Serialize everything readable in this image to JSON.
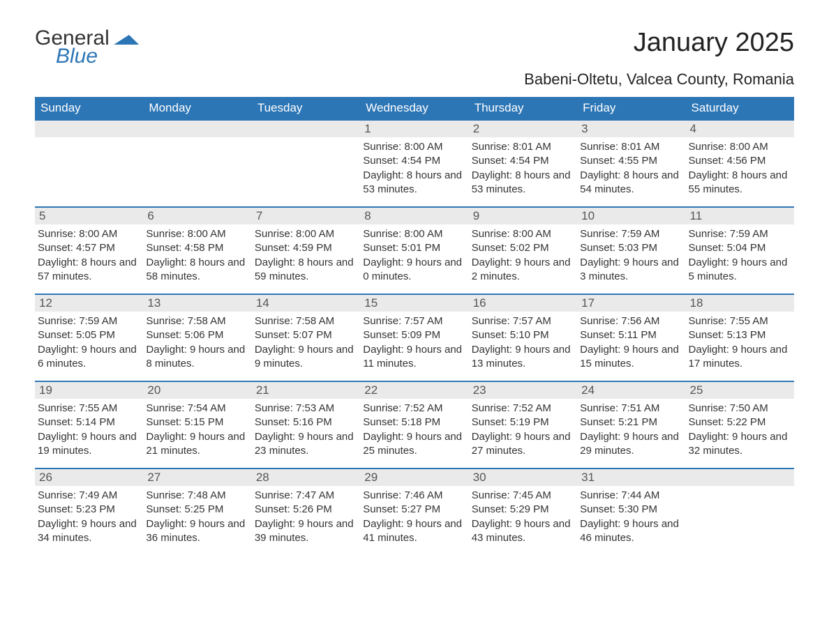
{
  "logo": {
    "word1": "General",
    "word2": "Blue"
  },
  "title": "January 2025",
  "location": "Babeni-Oltetu, Valcea County, Romania",
  "colors": {
    "header_bg": "#2d76b6",
    "header_text": "#ffffff",
    "daybar_bg": "#eaeaea",
    "daybar_text": "#555555",
    "body_text": "#333333",
    "accent_line": "#2d76b6",
    "page_bg": "#ffffff"
  },
  "typography": {
    "title_fontsize": 38,
    "location_fontsize": 22,
    "header_fontsize": 17,
    "daynum_fontsize": 17,
    "body_fontsize": 15
  },
  "layout": {
    "columns": 7,
    "leading_blanks": 3,
    "trailing_blanks": 1
  },
  "weekdays": [
    "Sunday",
    "Monday",
    "Tuesday",
    "Wednesday",
    "Thursday",
    "Friday",
    "Saturday"
  ],
  "days": [
    {
      "n": "1",
      "sunrise": "Sunrise: 8:00 AM",
      "sunset": "Sunset: 4:54 PM",
      "daylight": "Daylight: 8 hours and 53 minutes."
    },
    {
      "n": "2",
      "sunrise": "Sunrise: 8:01 AM",
      "sunset": "Sunset: 4:54 PM",
      "daylight": "Daylight: 8 hours and 53 minutes."
    },
    {
      "n": "3",
      "sunrise": "Sunrise: 8:01 AM",
      "sunset": "Sunset: 4:55 PM",
      "daylight": "Daylight: 8 hours and 54 minutes."
    },
    {
      "n": "4",
      "sunrise": "Sunrise: 8:00 AM",
      "sunset": "Sunset: 4:56 PM",
      "daylight": "Daylight: 8 hours and 55 minutes."
    },
    {
      "n": "5",
      "sunrise": "Sunrise: 8:00 AM",
      "sunset": "Sunset: 4:57 PM",
      "daylight": "Daylight: 8 hours and 57 minutes."
    },
    {
      "n": "6",
      "sunrise": "Sunrise: 8:00 AM",
      "sunset": "Sunset: 4:58 PM",
      "daylight": "Daylight: 8 hours and 58 minutes."
    },
    {
      "n": "7",
      "sunrise": "Sunrise: 8:00 AM",
      "sunset": "Sunset: 4:59 PM",
      "daylight": "Daylight: 8 hours and 59 minutes."
    },
    {
      "n": "8",
      "sunrise": "Sunrise: 8:00 AM",
      "sunset": "Sunset: 5:01 PM",
      "daylight": "Daylight: 9 hours and 0 minutes."
    },
    {
      "n": "9",
      "sunrise": "Sunrise: 8:00 AM",
      "sunset": "Sunset: 5:02 PM",
      "daylight": "Daylight: 9 hours and 2 minutes."
    },
    {
      "n": "10",
      "sunrise": "Sunrise: 7:59 AM",
      "sunset": "Sunset: 5:03 PM",
      "daylight": "Daylight: 9 hours and 3 minutes."
    },
    {
      "n": "11",
      "sunrise": "Sunrise: 7:59 AM",
      "sunset": "Sunset: 5:04 PM",
      "daylight": "Daylight: 9 hours and 5 minutes."
    },
    {
      "n": "12",
      "sunrise": "Sunrise: 7:59 AM",
      "sunset": "Sunset: 5:05 PM",
      "daylight": "Daylight: 9 hours and 6 minutes."
    },
    {
      "n": "13",
      "sunrise": "Sunrise: 7:58 AM",
      "sunset": "Sunset: 5:06 PM",
      "daylight": "Daylight: 9 hours and 8 minutes."
    },
    {
      "n": "14",
      "sunrise": "Sunrise: 7:58 AM",
      "sunset": "Sunset: 5:07 PM",
      "daylight": "Daylight: 9 hours and 9 minutes."
    },
    {
      "n": "15",
      "sunrise": "Sunrise: 7:57 AM",
      "sunset": "Sunset: 5:09 PM",
      "daylight": "Daylight: 9 hours and 11 minutes."
    },
    {
      "n": "16",
      "sunrise": "Sunrise: 7:57 AM",
      "sunset": "Sunset: 5:10 PM",
      "daylight": "Daylight: 9 hours and 13 minutes."
    },
    {
      "n": "17",
      "sunrise": "Sunrise: 7:56 AM",
      "sunset": "Sunset: 5:11 PM",
      "daylight": "Daylight: 9 hours and 15 minutes."
    },
    {
      "n": "18",
      "sunrise": "Sunrise: 7:55 AM",
      "sunset": "Sunset: 5:13 PM",
      "daylight": "Daylight: 9 hours and 17 minutes."
    },
    {
      "n": "19",
      "sunrise": "Sunrise: 7:55 AM",
      "sunset": "Sunset: 5:14 PM",
      "daylight": "Daylight: 9 hours and 19 minutes."
    },
    {
      "n": "20",
      "sunrise": "Sunrise: 7:54 AM",
      "sunset": "Sunset: 5:15 PM",
      "daylight": "Daylight: 9 hours and 21 minutes."
    },
    {
      "n": "21",
      "sunrise": "Sunrise: 7:53 AM",
      "sunset": "Sunset: 5:16 PM",
      "daylight": "Daylight: 9 hours and 23 minutes."
    },
    {
      "n": "22",
      "sunrise": "Sunrise: 7:52 AM",
      "sunset": "Sunset: 5:18 PM",
      "daylight": "Daylight: 9 hours and 25 minutes."
    },
    {
      "n": "23",
      "sunrise": "Sunrise: 7:52 AM",
      "sunset": "Sunset: 5:19 PM",
      "daylight": "Daylight: 9 hours and 27 minutes."
    },
    {
      "n": "24",
      "sunrise": "Sunrise: 7:51 AM",
      "sunset": "Sunset: 5:21 PM",
      "daylight": "Daylight: 9 hours and 29 minutes."
    },
    {
      "n": "25",
      "sunrise": "Sunrise: 7:50 AM",
      "sunset": "Sunset: 5:22 PM",
      "daylight": "Daylight: 9 hours and 32 minutes."
    },
    {
      "n": "26",
      "sunrise": "Sunrise: 7:49 AM",
      "sunset": "Sunset: 5:23 PM",
      "daylight": "Daylight: 9 hours and 34 minutes."
    },
    {
      "n": "27",
      "sunrise": "Sunrise: 7:48 AM",
      "sunset": "Sunset: 5:25 PM",
      "daylight": "Daylight: 9 hours and 36 minutes."
    },
    {
      "n": "28",
      "sunrise": "Sunrise: 7:47 AM",
      "sunset": "Sunset: 5:26 PM",
      "daylight": "Daylight: 9 hours and 39 minutes."
    },
    {
      "n": "29",
      "sunrise": "Sunrise: 7:46 AM",
      "sunset": "Sunset: 5:27 PM",
      "daylight": "Daylight: 9 hours and 41 minutes."
    },
    {
      "n": "30",
      "sunrise": "Sunrise: 7:45 AM",
      "sunset": "Sunset: 5:29 PM",
      "daylight": "Daylight: 9 hours and 43 minutes."
    },
    {
      "n": "31",
      "sunrise": "Sunrise: 7:44 AM",
      "sunset": "Sunset: 5:30 PM",
      "daylight": "Daylight: 9 hours and 46 minutes."
    }
  ]
}
